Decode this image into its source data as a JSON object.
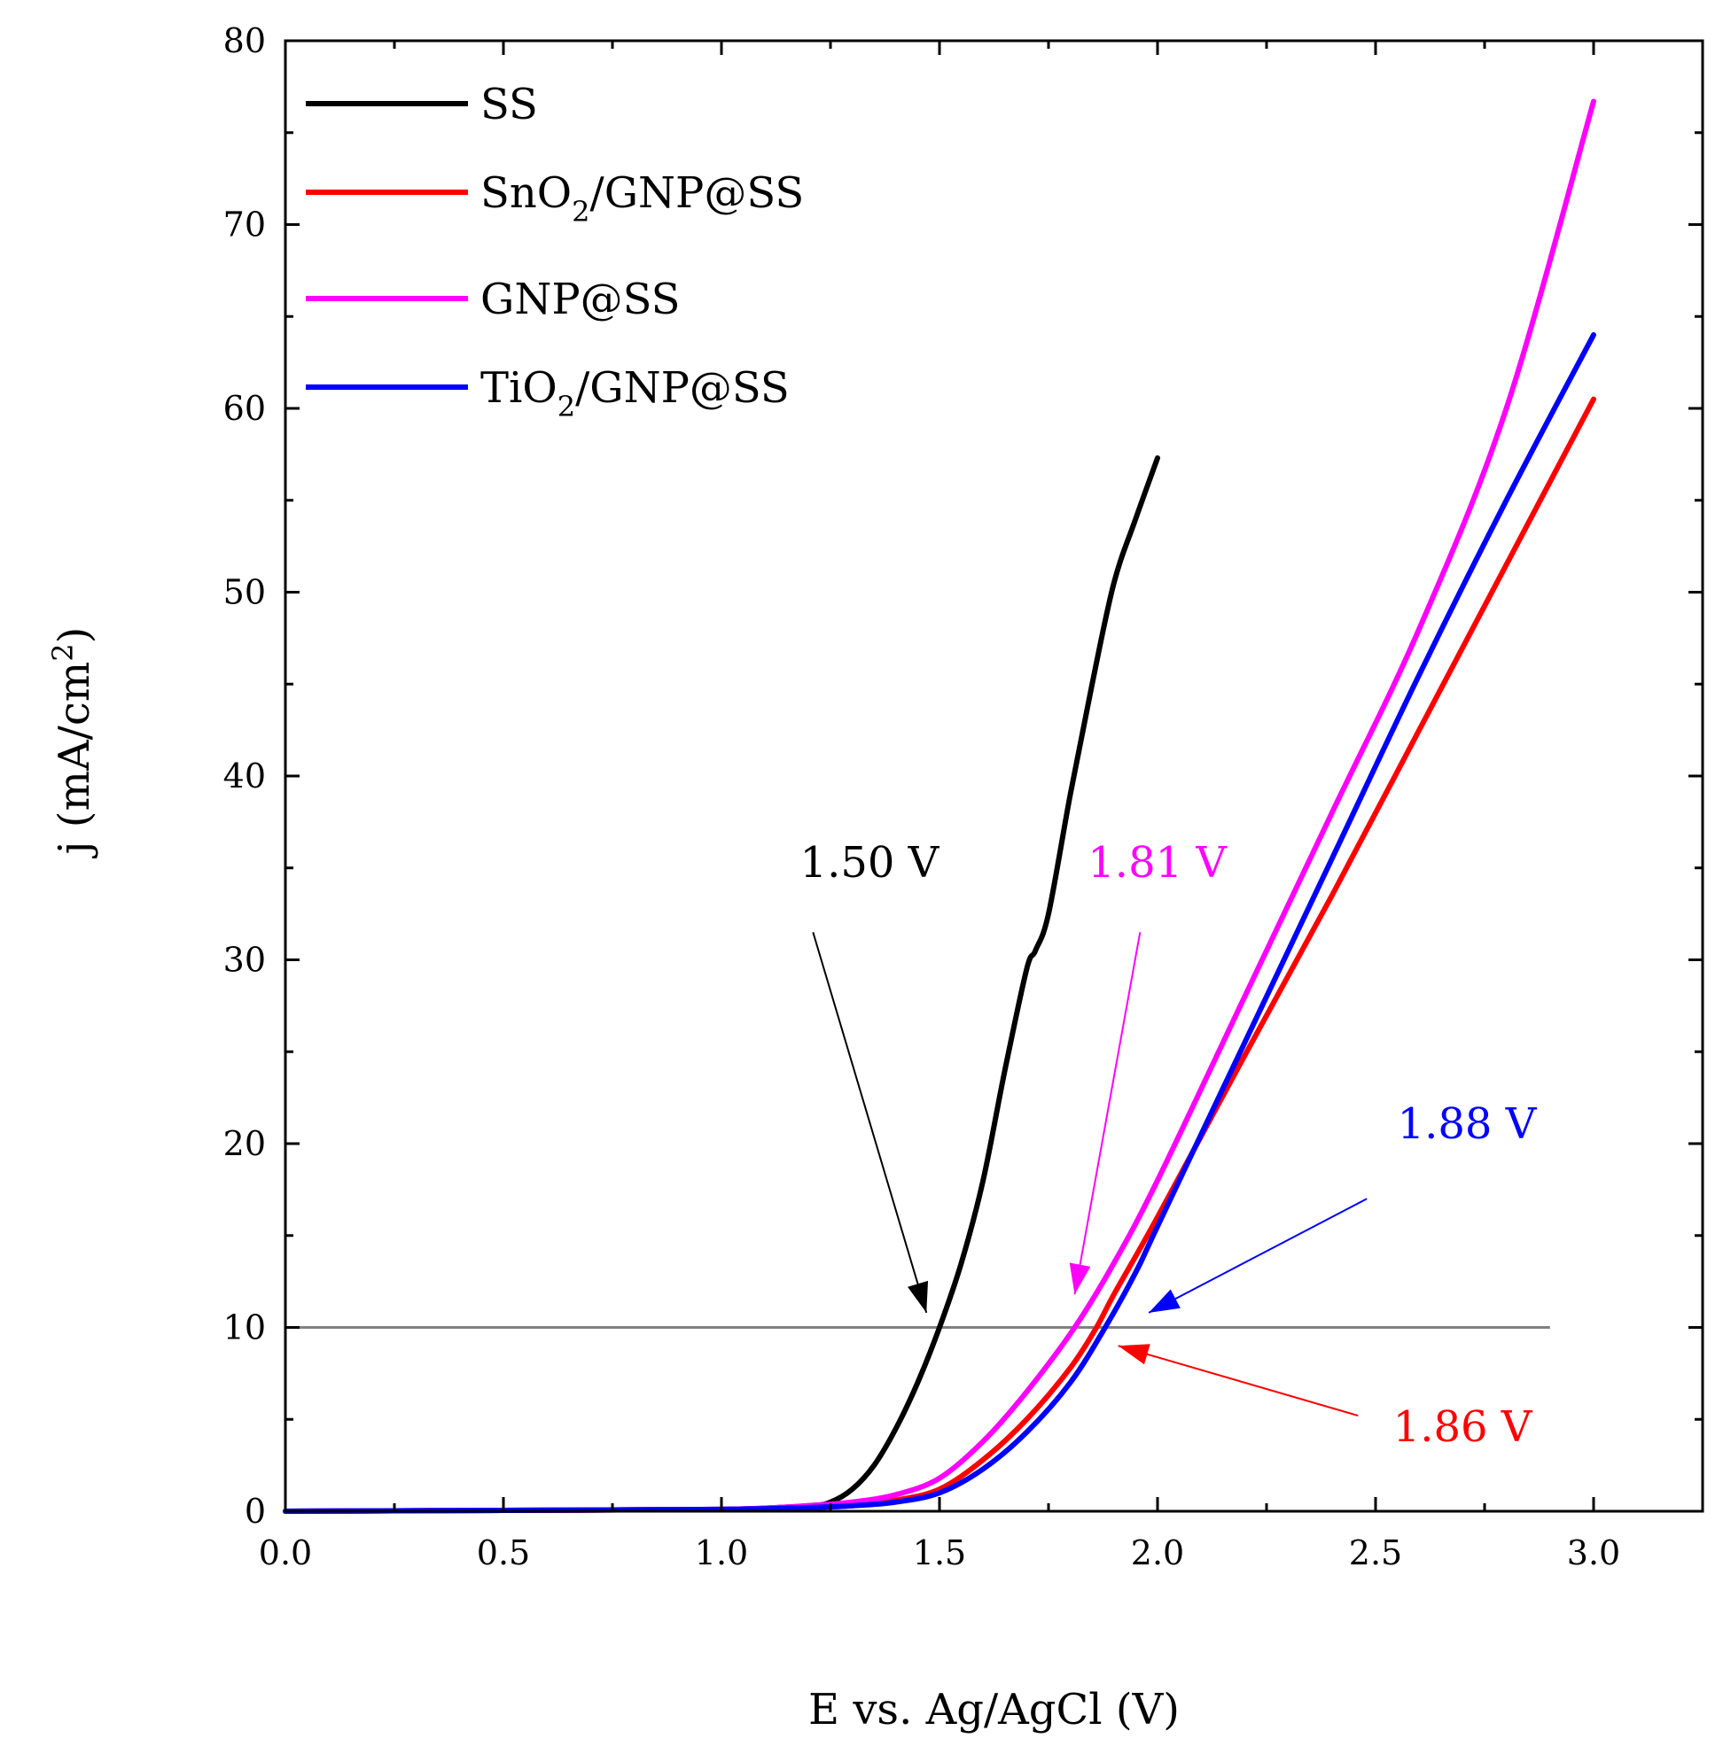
{
  "chart_data": {
    "type": "line",
    "title": "",
    "xlabel": "E vs. Ag/AgCl (V)",
    "ylabel_main": "j (mA/cm",
    "ylabel_sup": "2",
    "ylabel_close": ")",
    "xlim": [
      0,
      3.25
    ],
    "ylim": [
      0,
      80
    ],
    "xticks": [
      0.0,
      0.5,
      1.0,
      1.5,
      2.0,
      2.5,
      3.0
    ],
    "xtick_labels": [
      "0.0",
      "0.5",
      "1.0",
      "1.5",
      "2.0",
      "2.5",
      "3.0"
    ],
    "xminor_step": 0.25,
    "yticks": [
      0,
      10,
      20,
      30,
      40,
      50,
      60,
      70,
      80
    ],
    "ytick_labels": [
      "0",
      "10",
      "20",
      "30",
      "40",
      "50",
      "60",
      "70",
      "80"
    ],
    "yminor_step": 5,
    "reference_line": {
      "y": 10,
      "x_start": 0,
      "x_end": 2.9,
      "color": "#808080"
    },
    "legend_position": "top-left",
    "series": [
      {
        "name": "SS",
        "legend": {
          "main": "SS"
        },
        "color": "#000000",
        "x": [
          0,
          0.5,
          1.0,
          1.2,
          1.25,
          1.3,
          1.35,
          1.4,
          1.45,
          1.5,
          1.55,
          1.6,
          1.65,
          1.7,
          1.72,
          1.75,
          1.8,
          1.85,
          1.9,
          1.95,
          2.0
        ],
        "y": [
          0,
          0.05,
          0.1,
          0.3,
          0.5,
          1.2,
          2.5,
          4.5,
          7.0,
          10.0,
          13.5,
          18.0,
          24.0,
          29.5,
          30.5,
          32.5,
          39.0,
          45.0,
          50.5,
          54.0,
          57.3
        ]
      },
      {
        "name": "SnO2/GNP@SS",
        "legend": {
          "main": "SnO",
          "sub": "2",
          "rest": "/GNP@SS"
        },
        "color": "#ff0000",
        "x": [
          0,
          0.5,
          1.0,
          1.2,
          1.3,
          1.4,
          1.5,
          1.6,
          1.7,
          1.8,
          1.86,
          1.9,
          2.0,
          2.2,
          2.4,
          2.6,
          2.8,
          3.0
        ],
        "y": [
          0,
          0.05,
          0.1,
          0.2,
          0.3,
          0.6,
          1.2,
          2.8,
          5.0,
          7.8,
          10.0,
          11.8,
          16.0,
          24.8,
          33.5,
          42.5,
          51.5,
          60.5
        ]
      },
      {
        "name": "GNP@SS",
        "legend": {
          "main": "GNP@SS"
        },
        "color": "#ff00ff",
        "x": [
          0,
          0.5,
          1.0,
          1.2,
          1.3,
          1.4,
          1.5,
          1.6,
          1.7,
          1.81,
          1.9,
          2.0,
          2.2,
          2.4,
          2.6,
          2.8,
          3.0
        ],
        "y": [
          0,
          0.05,
          0.1,
          0.3,
          0.5,
          0.9,
          1.8,
          3.8,
          6.5,
          10.0,
          13.5,
          18.0,
          28.0,
          38.0,
          48.0,
          60.0,
          76.7
        ]
      },
      {
        "name": "TiO2/GNP@SS",
        "legend": {
          "main": "TiO",
          "sub": "2",
          "rest": "/GNP@SS"
        },
        "color": "#0000ff",
        "x": [
          0,
          0.5,
          1.0,
          1.2,
          1.3,
          1.4,
          1.5,
          1.6,
          1.7,
          1.8,
          1.88,
          1.95,
          2.0,
          2.2,
          2.4,
          2.6,
          2.8,
          3.0
        ],
        "y": [
          0,
          0.05,
          0.1,
          0.2,
          0.3,
          0.5,
          1.0,
          2.3,
          4.3,
          7.0,
          10.0,
          13.0,
          15.5,
          25.5,
          35.5,
          45.5,
          55.0,
          64.0
        ]
      }
    ],
    "annotations": [
      {
        "text": "1.50 V",
        "color": "#000000",
        "text_x": 1.18,
        "text_y": 34.5,
        "arrow_from": [
          1.21,
          31.5
        ],
        "arrow_to": [
          1.47,
          10.8
        ]
      },
      {
        "text": "1.81 V",
        "color": "#ff00ff",
        "text_x": 1.84,
        "text_y": 34.5,
        "arrow_from": [
          1.96,
          31.5
        ],
        "arrow_to": [
          1.81,
          11.8
        ]
      },
      {
        "text": "1.88 V",
        "color": "#0000ff",
        "text_x": 2.55,
        "text_y": 20.3,
        "arrow_from": [
          2.48,
          17.0
        ],
        "arrow_to": [
          1.98,
          10.8
        ]
      },
      {
        "text": "1.86 V",
        "color": "#ff0000",
        "text_x": 2.54,
        "text_y": 3.8,
        "arrow_from": [
          2.46,
          5.2
        ],
        "arrow_to": [
          1.91,
          9.0
        ]
      }
    ]
  }
}
